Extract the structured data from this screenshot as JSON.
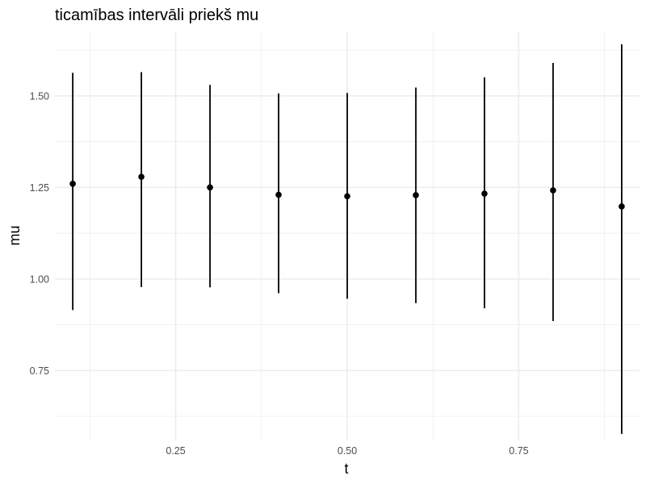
{
  "chart_data": {
    "type": "scatter",
    "title": "ticamības intervāli priekš mu",
    "xlabel": "t",
    "ylabel": "mu",
    "xlim": [
      0.074,
      0.926
    ],
    "ylim": [
      0.559,
      1.676
    ],
    "x_ticks": [
      0.25,
      0.5,
      0.75
    ],
    "x_tick_labels": [
      "0.25",
      "0.50",
      "0.75"
    ],
    "x_minor_ticks": [
      0.125,
      0.375,
      0.625,
      0.875
    ],
    "y_ticks": [
      0.75,
      1.0,
      1.25,
      1.5
    ],
    "y_tick_labels": [
      "0.75",
      "1.00",
      "1.25",
      "1.50"
    ],
    "y_minor_ticks": [
      0.625,
      0.875,
      1.125,
      1.375,
      1.625
    ],
    "grid": true,
    "legend": "none",
    "point_color": "#000000",
    "grid_color": "#ebebeb",
    "series": [
      {
        "x": [
          0.1,
          0.2,
          0.3,
          0.4,
          0.5,
          0.6,
          0.7,
          0.8,
          0.9
        ],
        "y": [
          1.26,
          1.279,
          1.25,
          1.23,
          1.226,
          1.229,
          1.233,
          1.242,
          1.198
        ],
        "lower": [
          0.915,
          0.978,
          0.977,
          0.961,
          0.946,
          0.934,
          0.92,
          0.885,
          0.577
        ],
        "upper": [
          1.563,
          1.565,
          1.53,
          1.507,
          1.508,
          1.523,
          1.551,
          1.59,
          1.641
        ]
      }
    ]
  }
}
